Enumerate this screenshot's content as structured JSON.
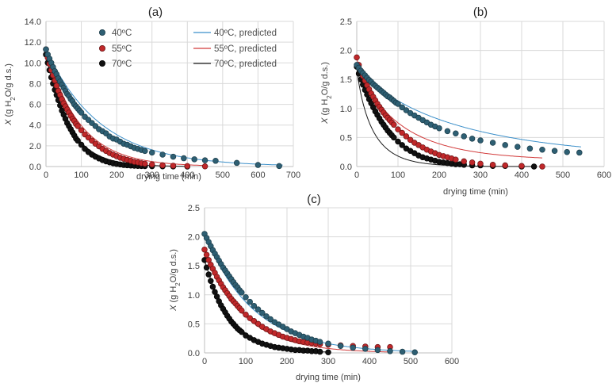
{
  "figure": {
    "legend": [
      "40ºC",
      "55ºC",
      "70ºC",
      "40ºC, predicted",
      "55ºC, predicted",
      "70ºC, predicted"
    ]
  },
  "chart_data": [
    {
      "type": "scatter",
      "title": "(a)",
      "xlabel": "drying time (min)",
      "ylabel_main": "X",
      "ylabel_rest": " (g H",
      "ylabel_sub": "2",
      "ylabel_end": "O/g d.s.)",
      "xlim": [
        0,
        700
      ],
      "ylim": [
        0,
        14
      ],
      "xticks": [
        0,
        100,
        200,
        300,
        400,
        500,
        600,
        700
      ],
      "yticks": [
        0,
        2,
        4,
        6,
        8,
        10,
        12,
        14
      ],
      "ytick_labels": [
        "0.0",
        "2.0",
        "4.0",
        "6.0",
        "8.0",
        "10.0",
        "12.0",
        "14.0"
      ],
      "legend_position": "top",
      "series": [
        {
          "name": "40ºC",
          "color": "#2e5f73",
          "x": [
            0,
            5,
            10,
            15,
            20,
            25,
            30,
            35,
            40,
            45,
            50,
            55,
            60,
            65,
            70,
            75,
            80,
            85,
            90,
            95,
            100,
            110,
            120,
            130,
            140,
            150,
            160,
            170,
            180,
            190,
            200,
            210,
            220,
            230,
            240,
            250,
            260,
            270,
            280,
            300,
            330,
            360,
            390,
            420,
            450,
            480,
            540,
            600,
            660
          ],
          "y": [
            11.3,
            10.8,
            10.4,
            10.0,
            9.6,
            9.2,
            8.9,
            8.5,
            8.2,
            7.9,
            7.6,
            7.3,
            7.0,
            6.8,
            6.5,
            6.3,
            6.0,
            5.8,
            5.6,
            5.4,
            5.2,
            4.8,
            4.5,
            4.2,
            3.9,
            3.6,
            3.4,
            3.2,
            2.9,
            2.7,
            2.6,
            2.4,
            2.2,
            2.1,
            1.95,
            1.8,
            1.7,
            1.6,
            1.5,
            1.35,
            1.15,
            0.95,
            0.8,
            0.7,
            0.6,
            0.55,
            0.35,
            0.15,
            0.05
          ]
        },
        {
          "name": "55ºC",
          "color": "#c0282a",
          "x": [
            0,
            5,
            10,
            15,
            20,
            25,
            30,
            35,
            40,
            45,
            50,
            55,
            60,
            65,
            70,
            75,
            80,
            85,
            90,
            100,
            110,
            120,
            130,
            140,
            150,
            160,
            170,
            180,
            190,
            200,
            210,
            220,
            230,
            240,
            250,
            260,
            270,
            280,
            300,
            330,
            360,
            400,
            450
          ],
          "y": [
            11.3,
            10.5,
            9.9,
            9.3,
            8.8,
            8.3,
            7.8,
            7.3,
            6.9,
            6.5,
            6.1,
            5.8,
            5.5,
            5.2,
            4.9,
            4.6,
            4.4,
            4.1,
            3.9,
            3.5,
            3.1,
            2.8,
            2.5,
            2.2,
            1.95,
            1.7,
            1.5,
            1.3,
            1.15,
            1.0,
            0.85,
            0.75,
            0.65,
            0.55,
            0.45,
            0.4,
            0.32,
            0.27,
            0.2,
            0.12,
            0.08,
            0.05,
            0.02
          ]
        },
        {
          "name": "70ºC",
          "color": "#111111",
          "x": [
            0,
            5,
            10,
            15,
            20,
            25,
            30,
            35,
            40,
            45,
            50,
            55,
            60,
            65,
            70,
            75,
            80,
            85,
            90,
            100,
            110,
            120,
            130,
            140,
            150,
            160,
            170,
            180,
            190,
            200,
            210,
            220,
            230,
            240,
            250,
            260,
            270,
            280,
            300,
            330,
            360,
            400
          ],
          "y": [
            10.8,
            10.0,
            9.3,
            8.6,
            8.0,
            7.4,
            6.9,
            6.4,
            5.9,
            5.4,
            5.0,
            4.6,
            4.2,
            3.9,
            3.6,
            3.3,
            3.0,
            2.7,
            2.5,
            2.1,
            1.7,
            1.4,
            1.15,
            0.95,
            0.78,
            0.62,
            0.5,
            0.4,
            0.32,
            0.25,
            0.2,
            0.15,
            0.12,
            0.1,
            0.08,
            0.06,
            0.05,
            0.04,
            0.03,
            0.02,
            0.01,
            0.0
          ]
        }
      ],
      "predicted": [
        {
          "name": "40ºC, predicted",
          "color": "#3b8fc9",
          "x0": 11.3,
          "k": 0.0065,
          "n": 1,
          "tmax": 670
        },
        {
          "name": "55ºC, predicted",
          "color": "#d23b3b",
          "x0": 11.3,
          "k": 0.0105,
          "n": 1,
          "tmax": 455
        },
        {
          "name": "70ºC, predicted",
          "color": "#1a1a1a",
          "x0": 10.8,
          "k": 0.0155,
          "n": 1,
          "tmax": 400
        }
      ]
    },
    {
      "type": "scatter",
      "title": "(b)",
      "xlabel": "drying time (min)",
      "ylabel_main": "X",
      "ylabel_rest": " (g H",
      "ylabel_sub": "2",
      "ylabel_end": "O/g d.s.)",
      "xlim": [
        0,
        600
      ],
      "ylim": [
        0,
        2.5
      ],
      "xticks": [
        0,
        100,
        200,
        300,
        400,
        500,
        600
      ],
      "yticks": [
        0,
        0.5,
        1.0,
        1.5,
        2.0,
        2.5
      ],
      "ytick_labels": [
        "0.0",
        "0.5",
        "1.0",
        "1.5",
        "2.0",
        "2.5"
      ],
      "series": [
        {
          "name": "40ºC",
          "color": "#2e5f73",
          "x": [
            0,
            5,
            10,
            15,
            20,
            25,
            30,
            35,
            40,
            45,
            50,
            55,
            60,
            65,
            70,
            75,
            80,
            85,
            90,
            95,
            100,
            110,
            120,
            130,
            140,
            150,
            160,
            170,
            180,
            190,
            200,
            220,
            240,
            260,
            280,
            300,
            330,
            360,
            390,
            420,
            450,
            480,
            510,
            540
          ],
          "y": [
            1.75,
            1.7,
            1.65,
            1.61,
            1.57,
            1.53,
            1.49,
            1.46,
            1.42,
            1.39,
            1.36,
            1.33,
            1.3,
            1.27,
            1.24,
            1.21,
            1.19,
            1.16,
            1.13,
            1.1,
            1.08,
            1.02,
            0.97,
            0.92,
            0.88,
            0.84,
            0.8,
            0.76,
            0.72,
            0.69,
            0.66,
            0.61,
            0.57,
            0.52,
            0.48,
            0.45,
            0.41,
            0.37,
            0.34,
            0.31,
            0.29,
            0.27,
            0.25,
            0.24
          ]
        },
        {
          "name": "55ºC",
          "color": "#c0282a",
          "x": [
            0,
            5,
            10,
            15,
            20,
            25,
            30,
            35,
            40,
            45,
            50,
            55,
            60,
            65,
            70,
            75,
            80,
            85,
            90,
            100,
            110,
            120,
            130,
            140,
            150,
            160,
            170,
            180,
            190,
            200,
            210,
            220,
            230,
            240,
            260,
            280,
            300,
            330,
            360,
            400,
            450
          ],
          "y": [
            1.88,
            1.75,
            1.65,
            1.56,
            1.48,
            1.4,
            1.33,
            1.26,
            1.2,
            1.14,
            1.08,
            1.03,
            0.98,
            0.93,
            0.88,
            0.84,
            0.8,
            0.76,
            0.72,
            0.64,
            0.58,
            0.52,
            0.46,
            0.41,
            0.37,
            0.33,
            0.29,
            0.26,
            0.23,
            0.2,
            0.18,
            0.16,
            0.14,
            0.12,
            0.09,
            0.07,
            0.05,
            0.03,
            0.02,
            0.01,
            0.0
          ]
        },
        {
          "name": "70ºC",
          "color": "#111111",
          "x": [
            0,
            5,
            10,
            15,
            20,
            25,
            30,
            35,
            40,
            45,
            50,
            55,
            60,
            65,
            70,
            75,
            80,
            85,
            90,
            100,
            110,
            120,
            130,
            140,
            150,
            160,
            170,
            180,
            190,
            200,
            210,
            220,
            230,
            240,
            250,
            260,
            280,
            300,
            330,
            360,
            400,
            430
          ],
          "y": [
            1.72,
            1.6,
            1.5,
            1.41,
            1.32,
            1.24,
            1.16,
            1.09,
            1.02,
            0.95,
            0.89,
            0.83,
            0.77,
            0.72,
            0.67,
            0.62,
            0.58,
            0.54,
            0.5,
            0.43,
            0.37,
            0.31,
            0.27,
            0.23,
            0.19,
            0.16,
            0.14,
            0.12,
            0.1,
            0.08,
            0.07,
            0.06,
            0.05,
            0.04,
            0.04,
            0.03,
            0.02,
            0.02,
            0.01,
            0.01,
            0.0,
            0.0
          ]
        }
      ],
      "predicted": [
        {
          "name": "40ºC, predicted",
          "color": "#3b8fc9",
          "x0": 1.75,
          "k": 0.0095,
          "n": 0.85,
          "tmax": 545,
          "xe": 0.12
        },
        {
          "name": "55ºC, predicted",
          "color": "#d23b3b",
          "x0": 1.88,
          "k": 0.02,
          "n": 0.85,
          "tmax": 450,
          "xe": 0.1
        },
        {
          "name": "70ºC, predicted",
          "color": "#1a1a1a",
          "x0": 1.72,
          "k": 0.045,
          "n": 0.85,
          "tmax": 430,
          "xe": 0.0
        }
      ]
    },
    {
      "type": "scatter",
      "title": "(c)",
      "xlabel": "drying time (min)",
      "ylabel_main": "X",
      "ylabel_rest": " (g H",
      "ylabel_sub": "2",
      "ylabel_end": "O/g d.s.)",
      "xlim": [
        0,
        600
      ],
      "ylim": [
        0,
        2.5
      ],
      "xticks": [
        0,
        100,
        200,
        300,
        400,
        500,
        600
      ],
      "yticks": [
        0,
        0.5,
        1.0,
        1.5,
        2.0,
        2.5
      ],
      "ytick_labels": [
        "0.0",
        "0.5",
        "1.0",
        "1.5",
        "2.0",
        "2.5"
      ],
      "series": [
        {
          "name": "40ºC",
          "color": "#2e5f73",
          "x": [
            0,
            5,
            10,
            15,
            20,
            25,
            30,
            35,
            40,
            45,
            50,
            55,
            60,
            65,
            70,
            75,
            80,
            85,
            90,
            100,
            110,
            120,
            130,
            140,
            150,
            160,
            170,
            180,
            190,
            200,
            210,
            220,
            230,
            240,
            250,
            260,
            270,
            280,
            300,
            330,
            360,
            390,
            420,
            450,
            480,
            510
          ],
          "y": [
            2.05,
            1.98,
            1.91,
            1.84,
            1.77,
            1.71,
            1.65,
            1.59,
            1.53,
            1.47,
            1.42,
            1.37,
            1.32,
            1.27,
            1.22,
            1.17,
            1.13,
            1.08,
            1.04,
            0.96,
            0.88,
            0.81,
            0.75,
            0.69,
            0.63,
            0.58,
            0.53,
            0.49,
            0.45,
            0.41,
            0.37,
            0.34,
            0.31,
            0.28,
            0.26,
            0.23,
            0.21,
            0.19,
            0.16,
            0.12,
            0.09,
            0.07,
            0.05,
            0.03,
            0.02,
            0.01
          ]
        },
        {
          "name": "55ºC",
          "color": "#c0282a",
          "x": [
            0,
            5,
            10,
            15,
            20,
            25,
            30,
            35,
            40,
            45,
            50,
            55,
            60,
            65,
            70,
            75,
            80,
            85,
            90,
            100,
            110,
            120,
            130,
            140,
            150,
            160,
            170,
            180,
            190,
            200,
            210,
            220,
            230,
            240,
            250,
            260,
            270,
            280,
            300,
            330,
            360,
            390,
            420,
            450
          ],
          "y": [
            1.78,
            1.69,
            1.6,
            1.52,
            1.45,
            1.38,
            1.31,
            1.25,
            1.19,
            1.13,
            1.08,
            1.03,
            0.98,
            0.93,
            0.89,
            0.85,
            0.81,
            0.77,
            0.73,
            0.66,
            0.6,
            0.55,
            0.5,
            0.45,
            0.41,
            0.37,
            0.34,
            0.31,
            0.28,
            0.26,
            0.24,
            0.22,
            0.2,
            0.19,
            0.18,
            0.17,
            0.16,
            0.15,
            0.14,
            0.13,
            0.12,
            0.11,
            0.1,
            0.1
          ]
        },
        {
          "name": "70ºC",
          "color": "#111111",
          "x": [
            0,
            5,
            10,
            15,
            20,
            25,
            30,
            35,
            40,
            45,
            50,
            55,
            60,
            65,
            70,
            75,
            80,
            85,
            90,
            100,
            110,
            120,
            130,
            140,
            150,
            160,
            170,
            180,
            190,
            200,
            210,
            220,
            230,
            240,
            250,
            260,
            270,
            280,
            300
          ],
          "y": [
            1.6,
            1.47,
            1.35,
            1.24,
            1.14,
            1.05,
            0.97,
            0.89,
            0.82,
            0.76,
            0.7,
            0.64,
            0.59,
            0.54,
            0.5,
            0.46,
            0.42,
            0.39,
            0.36,
            0.3,
            0.26,
            0.22,
            0.19,
            0.16,
            0.14,
            0.12,
            0.1,
            0.09,
            0.08,
            0.07,
            0.06,
            0.05,
            0.05,
            0.04,
            0.04,
            0.03,
            0.03,
            0.02,
            0.01
          ]
        }
      ],
      "predicted": [
        {
          "name": "40ºC, predicted",
          "color": "#3b8fc9",
          "x0": 2.05,
          "k": 0.0085,
          "n": 1,
          "tmax": 510
        },
        {
          "name": "55ºC, predicted",
          "color": "#d23b3b",
          "x0": 1.78,
          "k": 0.0105,
          "n": 1,
          "tmax": 455
        },
        {
          "name": "70ºC, predicted",
          "color": "#1a1a1a",
          "x0": 1.6,
          "k": 0.0155,
          "n": 1,
          "tmax": 300
        }
      ]
    }
  ]
}
